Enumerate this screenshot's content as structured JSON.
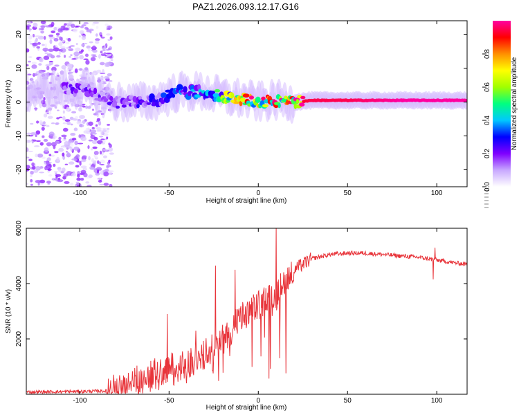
{
  "title": "PAZ1.2026.093.12.17.G16",
  "chart_data": [
    {
      "type": "heatmap",
      "name": "spectrogram",
      "xlabel": "Height of straight line (km)",
      "ylabel": "Frequency (Hz)",
      "xlim": [
        -130,
        117
      ],
      "ylim": [
        -25,
        24
      ],
      "xticks": [
        -100,
        -50,
        0,
        50,
        100
      ],
      "yticks": [
        -20,
        -10,
        0,
        10,
        20
      ],
      "colorbar": {
        "label": "Normalized spectral amplitude",
        "range": [
          0.0,
          1.0
        ],
        "ticks": [
          "0.0",
          "0.2",
          "0.4",
          "0.6",
          "0.8"
        ],
        "colors": [
          "#ffffff",
          "#c8a8ff",
          "#7f00ff",
          "#0000ff",
          "#00c8ff",
          "#00ff80",
          "#a0ff00",
          "#ffff00",
          "#ff9000",
          "#ff0000",
          "#ff00a0"
        ]
      },
      "ridge": {
        "description_points_x": [
          -130,
          -100,
          -80,
          -60,
          -45,
          -30,
          -20,
          -10,
          0,
          10,
          20,
          30,
          50,
          80,
          100,
          117
        ],
        "center_freq_hz": [
          3,
          4,
          0,
          0,
          3,
          3,
          1.5,
          1,
          0,
          0.5,
          0,
          0.5,
          0.5,
          0.5,
          0.5,
          0.5
        ],
        "amplitude": [
          0.15,
          0.2,
          0.2,
          0.25,
          0.35,
          0.4,
          0.55,
          0.7,
          0.9,
          0.9,
          0.9,
          0.95,
          0.95,
          1.0,
          1.0,
          1.0
        ]
      }
    },
    {
      "type": "line",
      "name": "snr",
      "xlabel": "Height of straight line (km)",
      "ylabel": "SNR (10 * v/v)",
      "xlim": [
        -130,
        117
      ],
      "ylim": [
        0,
        6000
      ],
      "xticks": [
        -100,
        -50,
        0,
        50,
        100
      ],
      "yticks": [
        2000,
        4000,
        6000
      ],
      "color": "#e8343a",
      "series": {
        "x": [
          -130,
          -100,
          -85,
          -80,
          -70,
          -60,
          -50,
          -40,
          -30,
          -20,
          -10,
          0,
          5,
          10,
          15,
          20,
          30,
          40,
          50,
          60,
          70,
          80,
          90,
          100,
          110,
          117
        ],
        "y": [
          80,
          100,
          120,
          200,
          500,
          700,
          900,
          1000,
          1500,
          2000,
          2700,
          3200,
          3500,
          3600,
          4200,
          4500,
          4900,
          5050,
          5100,
          5100,
          5050,
          5000,
          4950,
          4850,
          4750,
          4700
        ]
      },
      "spikes": [
        {
          "x": -51,
          "y": 2900
        },
        {
          "x": -35,
          "y": 2300
        },
        {
          "x": -24,
          "y": 4650
        },
        {
          "x": -13,
          "y": 4500
        },
        {
          "x": 10,
          "y": 6050
        },
        {
          "x": 12,
          "y": 1300
        },
        {
          "x": 98,
          "y": 4150
        },
        {
          "x": 99,
          "y": 5300
        }
      ]
    }
  ]
}
